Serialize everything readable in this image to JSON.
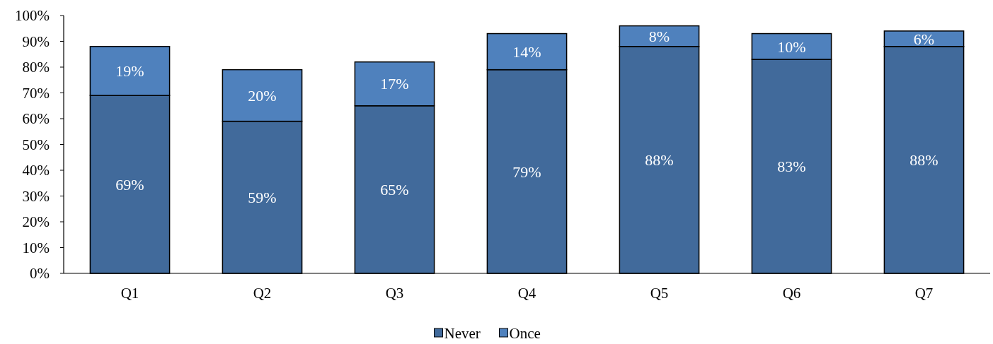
{
  "chart_data": {
    "type": "bar",
    "stacked": true,
    "categories": [
      "Q1",
      "Q2",
      "Q3",
      "Q4",
      "Q5",
      "Q6",
      "Q7"
    ],
    "series": [
      {
        "name": "Never",
        "color": "#416a9b",
        "values": [
          69,
          59,
          65,
          79,
          88,
          83,
          88
        ],
        "value_labels": [
          "69%",
          "59%",
          "65%",
          "79%",
          "88%",
          "83%",
          "88%"
        ]
      },
      {
        "name": "Once",
        "color": "#4f81bd",
        "values": [
          19,
          20,
          17,
          14,
          8,
          10,
          6
        ],
        "value_labels": [
          "19%",
          "20%",
          "17%",
          "14%",
          "8%",
          "10%",
          "6%"
        ]
      }
    ],
    "ylim": [
      0,
      100
    ],
    "yticks": [
      {
        "value": 0,
        "label": "0%"
      },
      {
        "value": 10,
        "label": "10%"
      },
      {
        "value": 20,
        "label": "20%"
      },
      {
        "value": 30,
        "label": "30%"
      },
      {
        "value": 40,
        "label": "40%"
      },
      {
        "value": 50,
        "label": "50%"
      },
      {
        "value": 60,
        "label": "60%"
      },
      {
        "value": 70,
        "label": "70%"
      },
      {
        "value": 80,
        "label": "80%"
      },
      {
        "value": 90,
        "label": "90%"
      },
      {
        "value": 100,
        "label": "100%"
      }
    ],
    "legend": "bottom",
    "grid": false
  }
}
